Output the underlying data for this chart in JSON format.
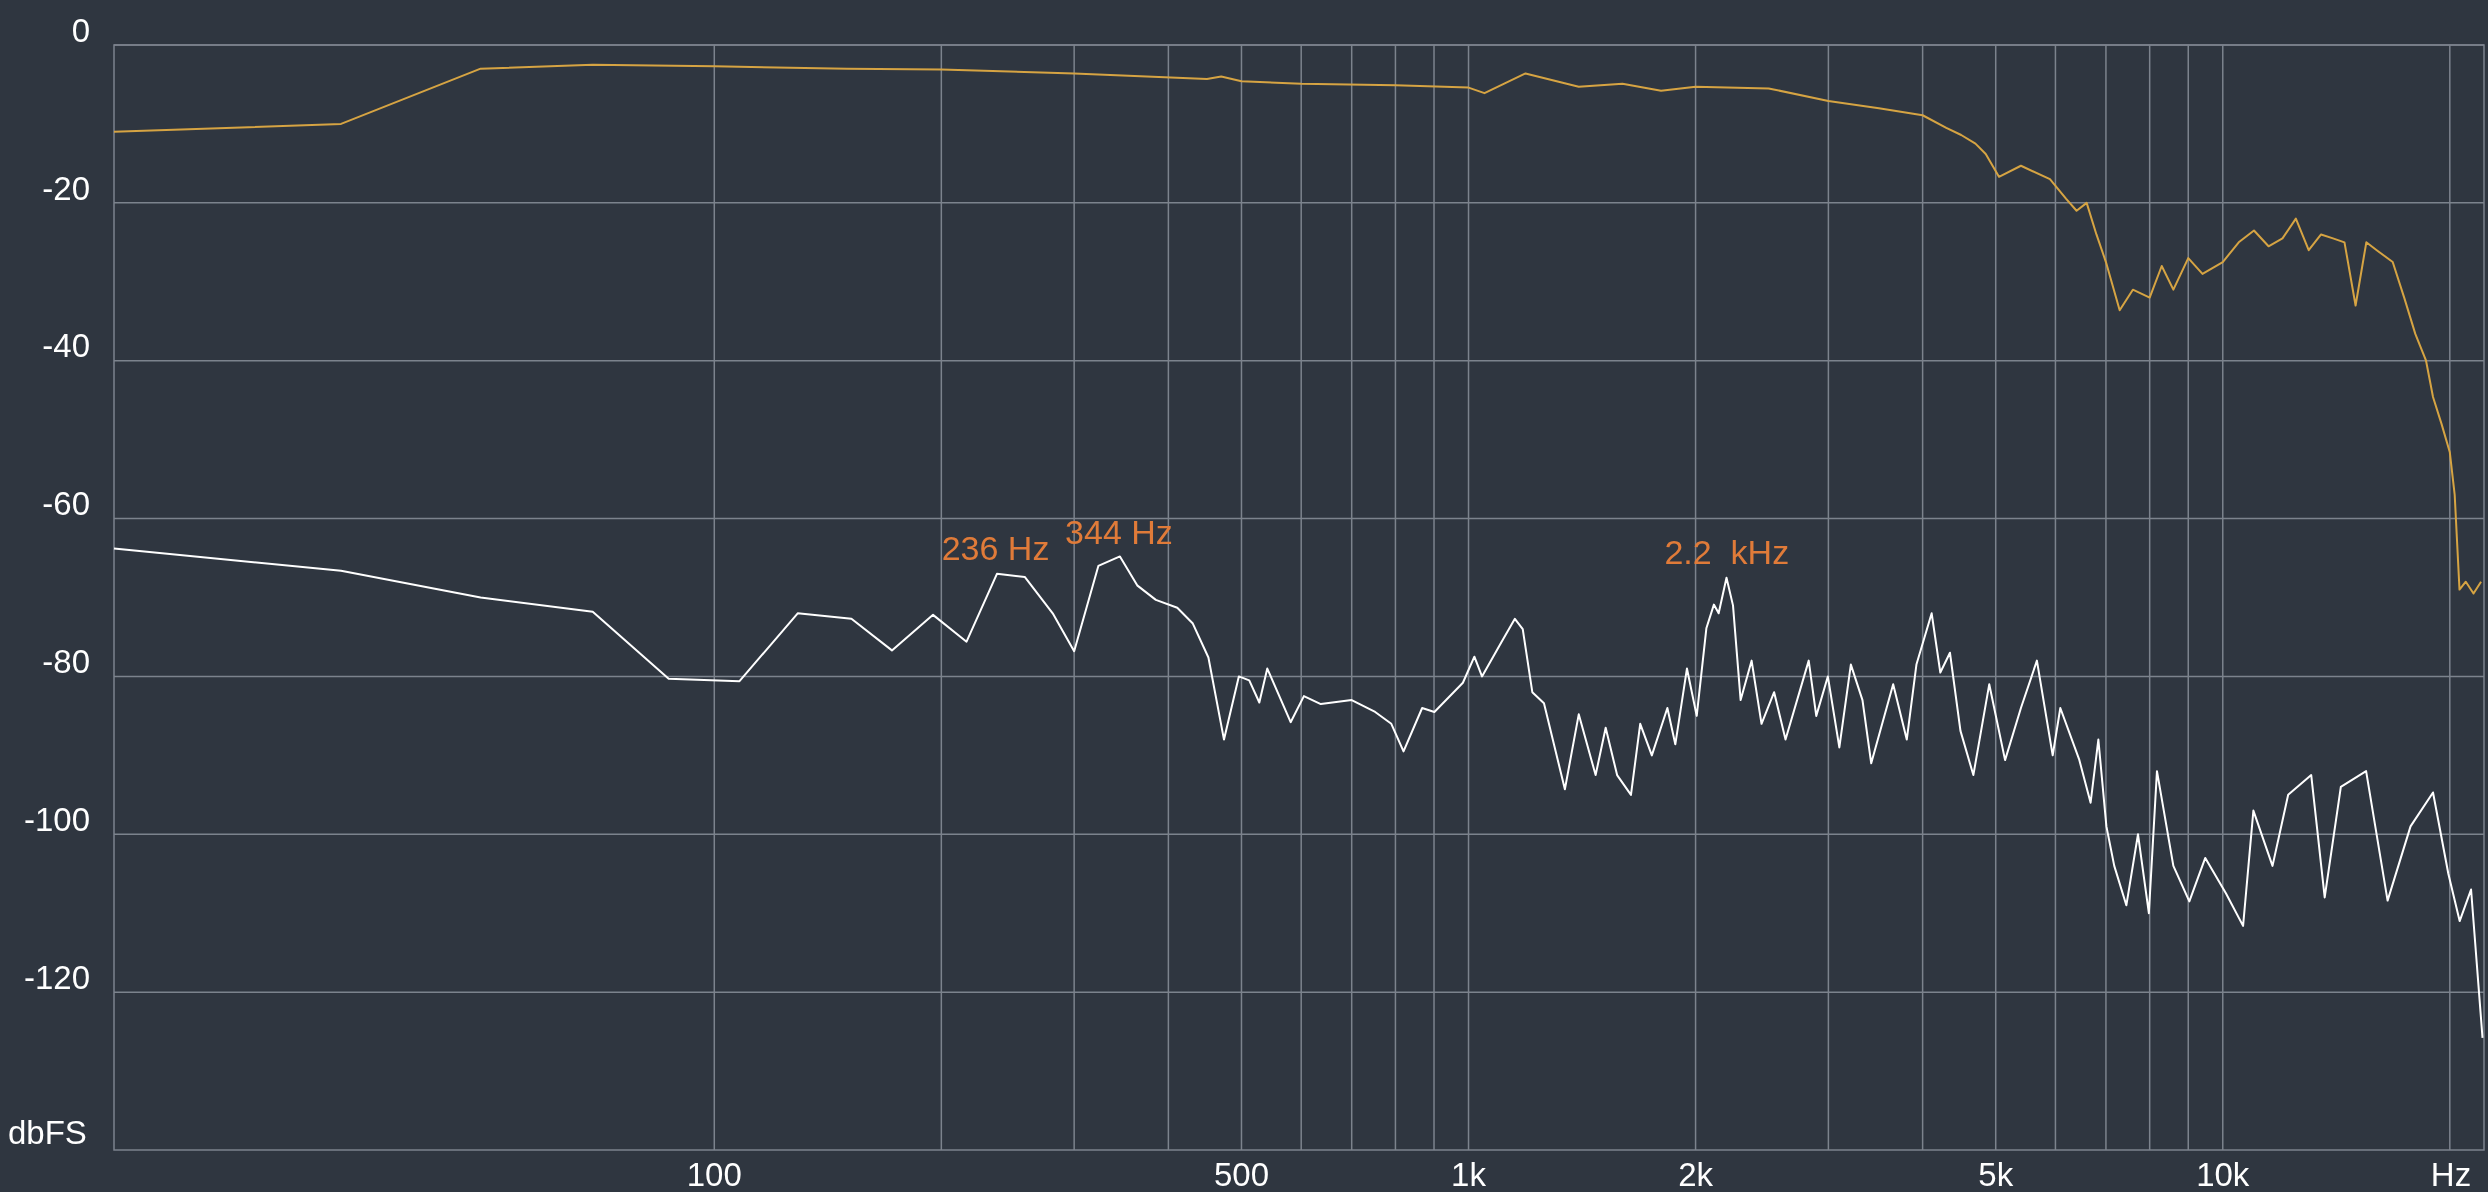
{
  "chart_data": {
    "type": "line",
    "log": "x",
    "grid": true,
    "xlabel": "Hz",
    "ylabel": "dbFS",
    "xlim": [
      16,
      22200
    ],
    "ylim": [
      -140,
      0
    ],
    "xticks": [
      {
        "value": 100,
        "label": "100"
      },
      {
        "value": 200,
        "label": null
      },
      {
        "value": 300,
        "label": null
      },
      {
        "value": 400,
        "label": null
      },
      {
        "value": 500,
        "label": "500"
      },
      {
        "value": 600,
        "label": null
      },
      {
        "value": 700,
        "label": null
      },
      {
        "value": 800,
        "label": null
      },
      {
        "value": 900,
        "label": null
      },
      {
        "value": 1000,
        "label": "1k"
      },
      {
        "value": 2000,
        "label": "2k"
      },
      {
        "value": 3000,
        "label": null
      },
      {
        "value": 4000,
        "label": null
      },
      {
        "value": 5000,
        "label": "5k"
      },
      {
        "value": 6000,
        "label": null
      },
      {
        "value": 7000,
        "label": null
      },
      {
        "value": 8000,
        "label": null
      },
      {
        "value": 9000,
        "label": null
      },
      {
        "value": 10000,
        "label": "10k"
      },
      {
        "value": 20000,
        "label": null
      }
    ],
    "yticks": [
      -120,
      -100,
      -80,
      -60,
      -40,
      -20,
      0
    ],
    "annotations": [
      {
        "text": "236 Hz",
        "x": 236,
        "y": -67
      },
      {
        "text": "344 Hz",
        "x": 344,
        "y": -65
      },
      {
        "text": "2.2  kHz",
        "x": 2200,
        "y": -67.5
      }
    ],
    "series": [
      {
        "color": "#d6a443",
        "x": [
          16,
          32,
          49,
          69,
          100,
          150,
          200,
          300,
          450,
          470,
          500,
          600,
          800,
          1000,
          1050,
          1190,
          1400,
          1600,
          1800,
          2000,
          2500,
          3000,
          3500,
          4000,
          4300,
          4500,
          4700,
          4850,
          5050,
          5400,
          5900,
          6200,
          6400,
          6600,
          6800,
          7000,
          7300,
          7600,
          8000,
          8300,
          8600,
          9000,
          9400,
          10000,
          10500,
          11000,
          11500,
          12000,
          12500,
          13000,
          13500,
          14000,
          14500,
          15000,
          15500,
          16000,
          16800,
          17400,
          18000,
          18600,
          19000,
          19500,
          20000,
          20300,
          20600,
          21000,
          21500,
          22000
        ],
        "values": [
          -11,
          -10,
          -3,
          -2.5,
          -2.7,
          -3,
          -3.1,
          -3.6,
          -4.3,
          -4,
          -4.6,
          -4.9,
          -5.1,
          -5.4,
          -6.1,
          -3.6,
          -5.3,
          -4.9,
          -5.8,
          -5.3,
          -5.5,
          -7.1,
          -8,
          -8.9,
          -10.5,
          -11.4,
          -12.5,
          -13.8,
          -16.7,
          -15.3,
          -17,
          -19.5,
          -21,
          -20,
          -24,
          -27.5,
          -33.6,
          -31,
          -32,
          -28,
          -31,
          -27,
          -29,
          -27.5,
          -25,
          -23.5,
          -25.5,
          -24.5,
          -22,
          -26,
          -24,
          -24.5,
          -25,
          -33,
          -25,
          -26,
          -27.5,
          -32,
          -36.6,
          -40,
          -44.6,
          -48,
          -51.6,
          -57,
          -69,
          -68,
          -69.5,
          -68
        ]
      },
      {
        "color": "#ffffff",
        "x": [
          16,
          32,
          49,
          69,
          87,
          108,
          129,
          152,
          172,
          195,
          216,
          237,
          258,
          281,
          300,
          323,
          345,
          364,
          385,
          411,
          431,
          452,
          474,
          496,
          512,
          528,
          541,
          581,
          605,
          637,
          700,
          752,
          790,
          820,
          868,
          901,
          983,
          1018,
          1042,
          1105,
          1152,
          1180,
          1215,
          1259,
          1342,
          1400,
          1474,
          1520,
          1574,
          1642,
          1689,
          1750,
          1835,
          1880,
          1948,
          2007,
          2067,
          2115,
          2146,
          2198,
          2242,
          2295,
          2373,
          2446,
          2542,
          2632,
          2825,
          2891,
          2995,
          3102,
          3213,
          3329,
          3419,
          3656,
          3811,
          3925,
          4112,
          4222,
          4348,
          4490,
          4670,
          4902,
          5145,
          5400,
          5670,
          5950,
          6090,
          6450,
          6680,
          6840,
          7010,
          7180,
          7450,
          7720,
          7980,
          8180,
          8600,
          9030,
          9480,
          10100,
          10640,
          10980,
          11640,
          12210,
          13100,
          13650,
          14340,
          15490,
          16540,
          17740,
          19000,
          19910,
          20610,
          21340,
          22100
        ],
        "values": [
          -63.8,
          -66.6,
          -70,
          -71.8,
          -80.3,
          -80.6,
          -72,
          -72.7,
          -76.7,
          -72.2,
          -75.6,
          -67,
          -67.4,
          -72,
          -76.8,
          -66,
          -64.8,
          -68.5,
          -70.3,
          -71.3,
          -73.3,
          -77.6,
          -88,
          -80,
          -80.5,
          -83.3,
          -79,
          -85.8,
          -82.5,
          -83.5,
          -83,
          -84.5,
          -86,
          -89.5,
          -84,
          -84.5,
          -80.8,
          -77.5,
          -80,
          -75.7,
          -72.7,
          -74,
          -82,
          -83.4,
          -94.3,
          -84.8,
          -92.5,
          -86.5,
          -92.5,
          -95,
          -86,
          -90,
          -84,
          -88.6,
          -79,
          -85,
          -73.9,
          -70.9,
          -72,
          -67.5,
          -71,
          -83,
          -78,
          -86,
          -82,
          -88,
          -78,
          -85,
          -80,
          -89,
          -78.5,
          -83,
          -91,
          -81,
          -88,
          -78.5,
          -72,
          -79.5,
          -77,
          -86.9,
          -92.5,
          -81,
          -90.6,
          -84,
          -78,
          -90,
          -84,
          -90.5,
          -96,
          -88,
          -99,
          -104,
          -109,
          -100,
          -110,
          -92,
          -104,
          -108.5,
          -103,
          -107.5,
          -111.6,
          -97,
          -104,
          -95,
          -92.5,
          -108,
          -94,
          -92,
          -108.4,
          -99,
          -94.7,
          -105,
          -111,
          -107,
          -125.8
        ]
      }
    ]
  }
}
